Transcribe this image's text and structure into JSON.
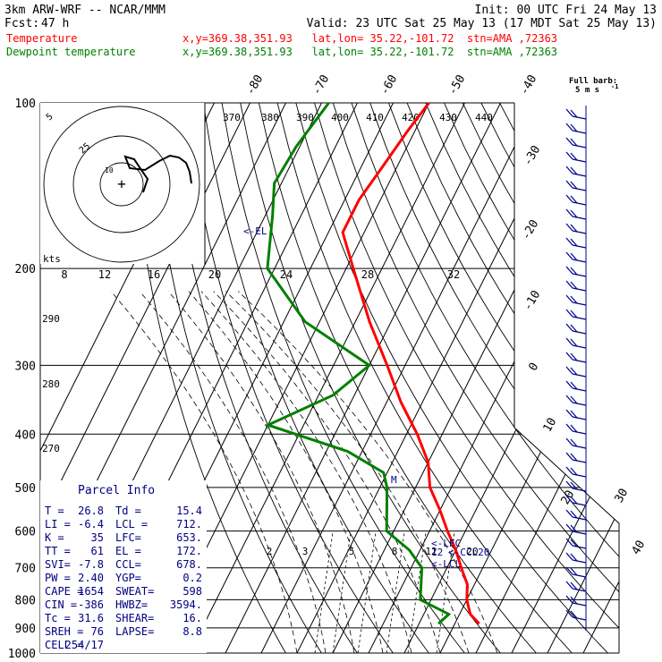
{
  "header": {
    "model": "3km ARW-WRF -- NCAR/MMM",
    "init": "Init: 00 UTC Fri 24 May 13",
    "fcst_label": "Fcst:",
    "fcst_value": "47 h",
    "valid": "Valid: 23 UTC Sat 25 May 13 (17 MDT Sat 25 May 13)",
    "temperature_label": "Temperature",
    "temperature_location": "x,y=369.38,351.93   lat,lon= 35.22,-101.72  stn=AMA ,72363",
    "dewpoint_label": "Dewpoint temperature",
    "dewpoint_location": "x,y=369.38,351.93   lat,lon= 35.22,-101.72  stn=AMA ,72363",
    "temperature_color": "#ff0000",
    "dewpoint_color": "#008000"
  },
  "barbs_legend": {
    "title": "Full barb:",
    "value": "5 m s",
    "unit_sup": "-1"
  },
  "chart_data": {
    "type": "line",
    "title": "",
    "ylabel": "",
    "pressure_levels": [
      100,
      200,
      300,
      400,
      500,
      600,
      700,
      800,
      900,
      1000
    ],
    "pressure_tick_labels": [
      "100",
      "200",
      "300",
      "400",
      "500",
      "600",
      "700",
      "800",
      "900",
      "1000"
    ],
    "isotherm_tick_labels": [
      "-80",
      "-70",
      "-60",
      "-50",
      "-40",
      "-30",
      "-20",
      "-10",
      "0",
      "10",
      "20",
      "30",
      "40"
    ],
    "isentrope_labels": [
      "370",
      "380",
      "390",
      "400",
      "410",
      "420",
      "430",
      "440",
      "290",
      "280",
      "270"
    ],
    "mixing_ratio_labels": [
      "2",
      "3",
      "5",
      "8",
      "12",
      "20"
    ],
    "levels_annotations": [
      "<-EL",
      "<-LFC",
      "<-CCL20",
      "<-LCL",
      "M"
    ],
    "series": [
      {
        "name": "Temperature",
        "color": "#ff0000",
        "points": [
          {
            "p": 100,
            "t": -60
          },
          {
            "p": 112,
            "t": -62
          },
          {
            "p": 130,
            "t": -64
          },
          {
            "p": 150,
            "t": -66
          },
          {
            "p": 172,
            "t": -66
          },
          {
            "p": 200,
            "t": -58
          },
          {
            "p": 250,
            "t": -46
          },
          {
            "p": 300,
            "t": -35
          },
          {
            "p": 350,
            "t": -26
          },
          {
            "p": 400,
            "t": -17
          },
          {
            "p": 450,
            "t": -10
          },
          {
            "p": 500,
            "t": -6
          },
          {
            "p": 550,
            "t": 0
          },
          {
            "p": 600,
            "t": 5
          },
          {
            "p": 650,
            "t": 10
          },
          {
            "p": 700,
            "t": 14
          },
          {
            "p": 750,
            "t": 18
          },
          {
            "p": 800,
            "t": 20
          },
          {
            "p": 850,
            "t": 23
          },
          {
            "p": 884,
            "t": 26.8
          }
        ]
      },
      {
        "name": "Dewpoint temperature",
        "color": "#008000",
        "points": [
          {
            "p": 100,
            "t": -88
          },
          {
            "p": 120,
            "t": -91
          },
          {
            "p": 140,
            "t": -92
          },
          {
            "p": 160,
            "t": -88
          },
          {
            "p": 200,
            "t": -82
          },
          {
            "p": 250,
            "t": -64
          },
          {
            "p": 300,
            "t": -40
          },
          {
            "p": 340,
            "t": -46
          },
          {
            "p": 385,
            "t": -60
          },
          {
            "p": 430,
            "t": -34
          },
          {
            "p": 470,
            "t": -21
          },
          {
            "p": 500,
            "t": -18
          },
          {
            "p": 600,
            "t": -12
          },
          {
            "p": 650,
            "t": -3
          },
          {
            "p": 700,
            "t": 3
          },
          {
            "p": 800,
            "t": 7
          },
          {
            "p": 850,
            "t": 17
          },
          {
            "p": 884,
            "t": 15.4
          }
        ]
      }
    ],
    "hodograph": {
      "speed_rings_labels": [
        "5",
        "25"
      ],
      "knots_label": "kts",
      "scale_labels": [
        "8",
        "12",
        "16",
        "20",
        "24",
        "28",
        "32"
      ]
    }
  },
  "parcel_info": {
    "title": "Parcel Info",
    "rows": [
      [
        "T  =",
        "26.8",
        "Td =",
        "15.4"
      ],
      [
        "LI =",
        "-6.4",
        "LCL =",
        "712."
      ],
      [
        "K  =",
        "35",
        "LFC=",
        "653."
      ],
      [
        "TT =",
        "61",
        "EL =",
        "172."
      ],
      [
        "SVI=",
        "-7.8",
        "CCL=",
        "678."
      ],
      [
        "PW =",
        "2.40",
        "YGP=",
        "0.2"
      ],
      [
        "CAPE =",
        "1654",
        "SWEAT=",
        "598"
      ],
      [
        "CIN =",
        "-386",
        "HWBZ=",
        "3594."
      ],
      [
        "Tc =",
        "31.6",
        "SHEAR=",
        "16."
      ],
      [
        "SREH =",
        "76",
        "LAPSE=",
        "8.8"
      ],
      [
        "CELL =",
        "254/17",
        "",
        ""
      ]
    ]
  }
}
